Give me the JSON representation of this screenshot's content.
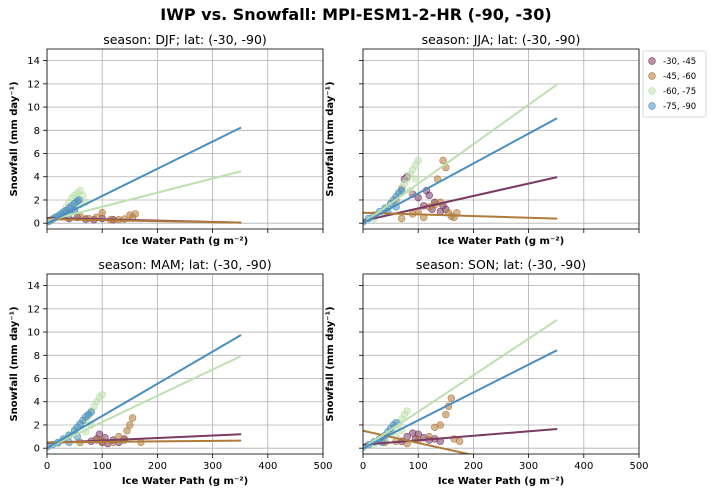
{
  "figure_title": "IWP vs. Snowfall: MPI-ESM1-2-HR  (-90, -30)",
  "legend_entries": [
    {
      "label": "-30, -45",
      "color": "#7b3a62"
    },
    {
      "label": "-45, -60",
      "color": "#b07a3a"
    },
    {
      "label": "-60, -75",
      "color": "#bde0ad"
    },
    {
      "label": "-75, -90",
      "color": "#4a8fc0"
    }
  ],
  "chart_data": [
    {
      "type": "scatter",
      "title": "season: DJF; lat: (-30, -90)",
      "xlabel": "Ice Water Path (g m⁻²)",
      "ylabel": "Snowfall (mm day⁻¹)",
      "xlim": [
        0,
        500
      ],
      "ylim": [
        -0.5,
        15
      ],
      "xticks": [
        0,
        100,
        200,
        300,
        400,
        500
      ],
      "yticks": [
        0,
        2,
        4,
        6,
        8,
        10,
        12,
        14
      ],
      "show_xticklabels": false,
      "show_yticklabels": true,
      "grid": true,
      "series": [
        {
          "name": "-30, -45",
          "color": "#7b3a62",
          "fit": [
            [
              0,
              0.45
            ],
            [
              350,
              0.05
            ]
          ],
          "points": [
            [
              40,
              0.4
            ],
            [
              55,
              0.5
            ],
            [
              70,
              0.35
            ],
            [
              85,
              0.3
            ],
            [
              100,
              0.4
            ],
            [
              120,
              0.3
            ]
          ]
        },
        {
          "name": "-45, -60",
          "color": "#b07a3a",
          "fit": [
            [
              0,
              0.35
            ],
            [
              350,
              0.05
            ]
          ],
          "points": [
            [
              60,
              0.6
            ],
            [
              75,
              0.4
            ],
            [
              90,
              0.5
            ],
            [
              100,
              0.9
            ],
            [
              115,
              0.3
            ],
            [
              130,
              0.3
            ],
            [
              140,
              0.35
            ],
            [
              150,
              0.7
            ],
            [
              155,
              0.5
            ],
            [
              160,
              0.8
            ]
          ]
        },
        {
          "name": "-60, -75",
          "color": "#bde0ad",
          "fit": [
            [
              0,
              0.2
            ],
            [
              350,
              4.45
            ]
          ],
          "points": [
            [
              10,
              0.3
            ],
            [
              20,
              0.6
            ],
            [
              30,
              1.0
            ],
            [
              35,
              1.4
            ],
            [
              40,
              1.8
            ],
            [
              45,
              2.2
            ],
            [
              50,
              2.4
            ],
            [
              55,
              2.6
            ],
            [
              60,
              2.8
            ],
            [
              65,
              2.4
            ],
            [
              60,
              1.6
            ],
            [
              70,
              1.8
            ],
            [
              50,
              1.2
            ],
            [
              40,
              0.8
            ]
          ]
        },
        {
          "name": "-75, -90",
          "color": "#4a8fc0",
          "fit": [
            [
              0,
              0.0
            ],
            [
              350,
              8.2
            ]
          ],
          "points": [
            [
              0,
              0.1
            ],
            [
              5,
              0.2
            ],
            [
              10,
              0.35
            ],
            [
              15,
              0.5
            ],
            [
              20,
              0.6
            ],
            [
              25,
              0.8
            ],
            [
              30,
              0.95
            ],
            [
              35,
              1.1
            ],
            [
              40,
              1.3
            ],
            [
              45,
              1.5
            ],
            [
              50,
              1.7
            ],
            [
              55,
              1.9
            ],
            [
              58,
              2.0
            ],
            [
              30,
              0.6
            ],
            [
              40,
              0.9
            ],
            [
              50,
              1.1
            ]
          ]
        }
      ]
    },
    {
      "type": "scatter",
      "title": "season: JJA; lat: (-30, -90)",
      "xlabel": "Ice Water Path (g m⁻²)",
      "ylabel": "Snowfall (mm day⁻¹)",
      "xlim": [
        0,
        500
      ],
      "ylim": [
        -0.5,
        15
      ],
      "xticks": [
        0,
        100,
        200,
        300,
        400,
        500
      ],
      "yticks": [
        0,
        2,
        4,
        6,
        8,
        10,
        12,
        14
      ],
      "show_xticklabels": false,
      "show_yticklabels": false,
      "grid": true,
      "series": [
        {
          "name": "-30, -45",
          "color": "#7b3a62",
          "fit": [
            [
              0,
              0.2
            ],
            [
              350,
              3.95
            ]
          ],
          "points": [
            [
              60,
              2.0
            ],
            [
              70,
              3.0
            ],
            [
              75,
              3.8
            ],
            [
              80,
              4.0
            ],
            [
              90,
              2.5
            ],
            [
              100,
              2.2
            ],
            [
              110,
              1.5
            ],
            [
              115,
              2.8
            ],
            [
              120,
              2.4
            ],
            [
              125,
              1.2
            ],
            [
              130,
              1.8
            ],
            [
              140,
              1.0
            ],
            [
              145,
              1.5
            ],
            [
              150,
              1.2
            ]
          ]
        },
        {
          "name": "-45, -60",
          "color": "#b07a3a",
          "fit": [
            [
              0,
              0.9
            ],
            [
              350,
              0.4
            ]
          ],
          "points": [
            [
              70,
              0.4
            ],
            [
              90,
              0.8
            ],
            [
              100,
              1.0
            ],
            [
              110,
              0.5
            ],
            [
              120,
              1.4
            ],
            [
              130,
              1.6
            ],
            [
              135,
              3.8
            ],
            [
              140,
              1.8
            ],
            [
              145,
              5.4
            ],
            [
              150,
              4.8
            ],
            [
              155,
              0.9
            ],
            [
              160,
              0.6
            ],
            [
              165,
              0.5
            ],
            [
              170,
              0.9
            ]
          ]
        },
        {
          "name": "-60, -75",
          "color": "#bde0ad",
          "fit": [
            [
              0,
              0.0
            ],
            [
              350,
              11.9
            ]
          ],
          "points": [
            [
              20,
              0.4
            ],
            [
              30,
              0.8
            ],
            [
              40,
              1.2
            ],
            [
              50,
              1.6
            ],
            [
              60,
              2.0
            ],
            [
              65,
              2.6
            ],
            [
              70,
              3.0
            ],
            [
              75,
              3.4
            ],
            [
              80,
              3.8
            ],
            [
              85,
              4.2
            ],
            [
              90,
              4.6
            ],
            [
              95,
              5.0
            ],
            [
              100,
              5.4
            ],
            [
              95,
              3.8
            ],
            [
              85,
              2.8
            ]
          ]
        },
        {
          "name": "-75, -90",
          "color": "#4a8fc0",
          "fit": [
            [
              0,
              0.0
            ],
            [
              350,
              9.0
            ]
          ],
          "points": [
            [
              0,
              0.1
            ],
            [
              10,
              0.4
            ],
            [
              20,
              0.7
            ],
            [
              30,
              1.0
            ],
            [
              40,
              1.3
            ],
            [
              50,
              1.7
            ],
            [
              55,
              2.0
            ],
            [
              60,
              2.3
            ],
            [
              65,
              2.6
            ],
            [
              70,
              2.8
            ],
            [
              45,
              1.0
            ],
            [
              60,
              1.4
            ]
          ]
        }
      ]
    },
    {
      "type": "scatter",
      "title": "season: MAM; lat: (-30, -90)",
      "xlabel": "Ice Water Path (g m⁻²)",
      "ylabel": "Snowfall (mm day⁻¹)",
      "xlim": [
        0,
        500
      ],
      "ylim": [
        -0.5,
        15
      ],
      "xticks": [
        0,
        100,
        200,
        300,
        400,
        500
      ],
      "yticks": [
        0,
        2,
        4,
        6,
        8,
        10,
        12,
        14
      ],
      "show_xticklabels": true,
      "show_yticklabels": true,
      "grid": true,
      "series": [
        {
          "name": "-30, -45",
          "color": "#7b3a62",
          "fit": [
            [
              0,
              0.45
            ],
            [
              350,
              1.2
            ]
          ],
          "points": [
            [
              80,
              0.6
            ],
            [
              90,
              0.8
            ],
            [
              95,
              1.2
            ],
            [
              100,
              0.5
            ],
            [
              105,
              0.9
            ],
            [
              110,
              0.4
            ],
            [
              120,
              0.7
            ],
            [
              130,
              0.5
            ],
            [
              140,
              0.8
            ]
          ]
        },
        {
          "name": "-45, -60",
          "color": "#b07a3a",
          "fit": [
            [
              0,
              0.5
            ],
            [
              350,
              0.65
            ]
          ],
          "points": [
            [
              60,
              0.5
            ],
            [
              90,
              0.7
            ],
            [
              100,
              0.6
            ],
            [
              120,
              0.5
            ],
            [
              130,
              1.0
            ],
            [
              140,
              0.7
            ],
            [
              145,
              1.5
            ],
            [
              150,
              2.0
            ],
            [
              155,
              2.6
            ],
            [
              170,
              0.5
            ]
          ]
        },
        {
          "name": "-60, -75",
          "color": "#bde0ad",
          "fit": [
            [
              0,
              0.0
            ],
            [
              350,
              7.9
            ]
          ],
          "points": [
            [
              20,
              0.4
            ],
            [
              30,
              0.8
            ],
            [
              40,
              1.2
            ],
            [
              50,
              1.6
            ],
            [
              60,
              2.0
            ],
            [
              70,
              2.4
            ],
            [
              75,
              2.8
            ],
            [
              80,
              3.2
            ],
            [
              85,
              3.6
            ],
            [
              90,
              4.0
            ],
            [
              95,
              4.4
            ],
            [
              100,
              4.6
            ],
            [
              80,
              2.0
            ],
            [
              70,
              1.4
            ]
          ]
        },
        {
          "name": "-75, -90",
          "color": "#4a8fc0",
          "fit": [
            [
              0,
              0.0
            ],
            [
              350,
              9.7
            ]
          ],
          "points": [
            [
              0,
              0.1
            ],
            [
              10,
              0.3
            ],
            [
              20,
              0.5
            ],
            [
              30,
              0.8
            ],
            [
              40,
              1.1
            ],
            [
              50,
              1.5
            ],
            [
              55,
              1.8
            ],
            [
              60,
              2.1
            ],
            [
              65,
              2.4
            ],
            [
              70,
              2.7
            ],
            [
              75,
              2.9
            ],
            [
              80,
              3.1
            ],
            [
              40,
              0.5
            ],
            [
              55,
              1.0
            ]
          ]
        }
      ]
    },
    {
      "type": "scatter",
      "title": "season: SON; lat: (-30, -90)",
      "xlabel": "Ice Water Path (g m⁻²)",
      "ylabel": "Snowfall (mm day⁻¹)",
      "xlim": [
        0,
        500
      ],
      "ylim": [
        -0.5,
        15
      ],
      "xticks": [
        0,
        100,
        200,
        300,
        400,
        500
      ],
      "yticks": [
        0,
        2,
        4,
        6,
        8,
        10,
        12,
        14
      ],
      "show_xticklabels": true,
      "show_yticklabels": false,
      "grid": true,
      "series": [
        {
          "name": "-30, -45",
          "color": "#7b3a62",
          "fit": [
            [
              0,
              0.3
            ],
            [
              350,
              1.65
            ]
          ],
          "points": [
            [
              70,
              0.6
            ],
            [
              80,
              1.0
            ],
            [
              90,
              1.3
            ],
            [
              95,
              0.8
            ],
            [
              100,
              1.2
            ],
            [
              110,
              0.9
            ],
            [
              120,
              0.7
            ],
            [
              130,
              0.8
            ],
            [
              140,
              0.6
            ]
          ]
        },
        {
          "name": "-45, -60",
          "color": "#b07a3a",
          "fit": [
            [
              0,
              1.5
            ],
            [
              200,
              -0.6
            ]
          ],
          "points": [
            [
              40,
              0.5
            ],
            [
              60,
              0.6
            ],
            [
              80,
              0.4
            ],
            [
              100,
              0.7
            ],
            [
              120,
              1.0
            ],
            [
              130,
              1.8
            ],
            [
              140,
              2.0
            ],
            [
              150,
              2.9
            ],
            [
              155,
              3.6
            ],
            [
              160,
              4.3
            ],
            [
              165,
              0.8
            ],
            [
              175,
              0.6
            ]
          ]
        },
        {
          "name": "-60, -75",
          "color": "#bde0ad",
          "fit": [
            [
              0,
              0.0
            ],
            [
              350,
              11.0
            ]
          ],
          "points": [
            [
              20,
              0.3
            ],
            [
              30,
              0.6
            ],
            [
              40,
              0.9
            ],
            [
              50,
              1.3
            ],
            [
              60,
              1.7
            ],
            [
              65,
              2.1
            ],
            [
              70,
              2.5
            ],
            [
              75,
              2.9
            ],
            [
              80,
              3.2
            ],
            [
              70,
              1.5
            ],
            [
              60,
              1.0
            ]
          ]
        },
        {
          "name": "-75, -90",
          "color": "#4a8fc0",
          "fit": [
            [
              0,
              0.0
            ],
            [
              350,
              8.4
            ]
          ],
          "points": [
            [
              0,
              0.1
            ],
            [
              10,
              0.3
            ],
            [
              20,
              0.55
            ],
            [
              30,
              0.8
            ],
            [
              40,
              1.1
            ],
            [
              45,
              1.4
            ],
            [
              50,
              1.7
            ],
            [
              55,
              2.0
            ],
            [
              60,
              2.2
            ],
            [
              35,
              0.5
            ]
          ]
        }
      ]
    }
  ]
}
